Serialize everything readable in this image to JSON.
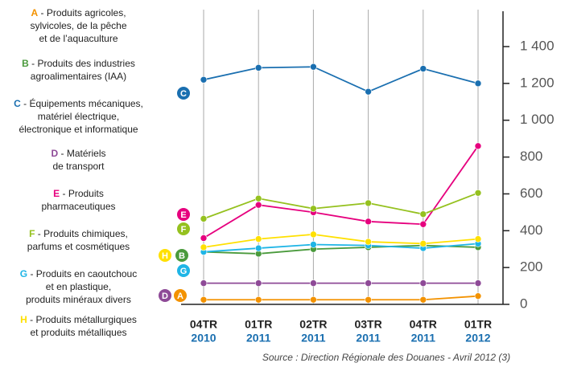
{
  "chart_data": {
    "type": "line",
    "categories": [
      "04TR",
      "01TR",
      "02TR",
      "03TR",
      "04TR",
      "01TR"
    ],
    "category_years": [
      "2010",
      "2011",
      "2011",
      "2011",
      "2011",
      "2012"
    ],
    "ylim": [
      0,
      1400
    ],
    "yticks": [
      0,
      200,
      400,
      600,
      800,
      {
        "value": 1000,
        "label": "1 000"
      },
      {
        "value": 1200,
        "label": "1 200"
      },
      {
        "value": 1400,
        "label": "1 400"
      }
    ],
    "grid": true,
    "source": "Source : Direction Régionale des Douanes -  Avril 2012 (3)",
    "series": [
      {
        "letter": "A",
        "name": "Produits agricoles,\nsylvicoles, de la pêche\net de l’aquaculture",
        "color": "#f39200",
        "values": [
          25,
          25,
          25,
          25,
          25,
          45
        ]
      },
      {
        "letter": "B",
        "name": "Produits des industries\nagroalimentaires (IAA)",
        "color": "#4a9a3c",
        "values": [
          285,
          275,
          300,
          310,
          320,
          310
        ]
      },
      {
        "letter": "C",
        "name": "Équipements mécaniques,\nmatériel électrique,\nélectronique et informatique",
        "color": "#1a6fb0",
        "values": [
          1220,
          1285,
          1290,
          1155,
          1280,
          1200
        ]
      },
      {
        "letter": "D",
        "name": "Matériels\nde transport",
        "color": "#8e4a97",
        "values": [
          115,
          115,
          115,
          115,
          115,
          115
        ]
      },
      {
        "letter": "E",
        "name": "Produits\npharmaceutiques",
        "color": "#e6007e",
        "values": [
          360,
          540,
          500,
          450,
          435,
          860
        ]
      },
      {
        "letter": "F",
        "name": "Produits chimiques,\nparfums et cosmétiques",
        "color": "#95c11f",
        "values": [
          465,
          575,
          520,
          550,
          490,
          605
        ]
      },
      {
        "letter": "G",
        "name": "Produits en caoutchouc\net en plastique,\nproduits minéraux divers",
        "color": "#1fb5e6",
        "values": [
          285,
          305,
          325,
          320,
          305,
          330
        ]
      },
      {
        "letter": "H",
        "name": "Produits métallurgiques\net produits métalliques",
        "color": "#ffe000",
        "values": [
          310,
          355,
          380,
          340,
          330,
          355
        ]
      }
    ]
  }
}
